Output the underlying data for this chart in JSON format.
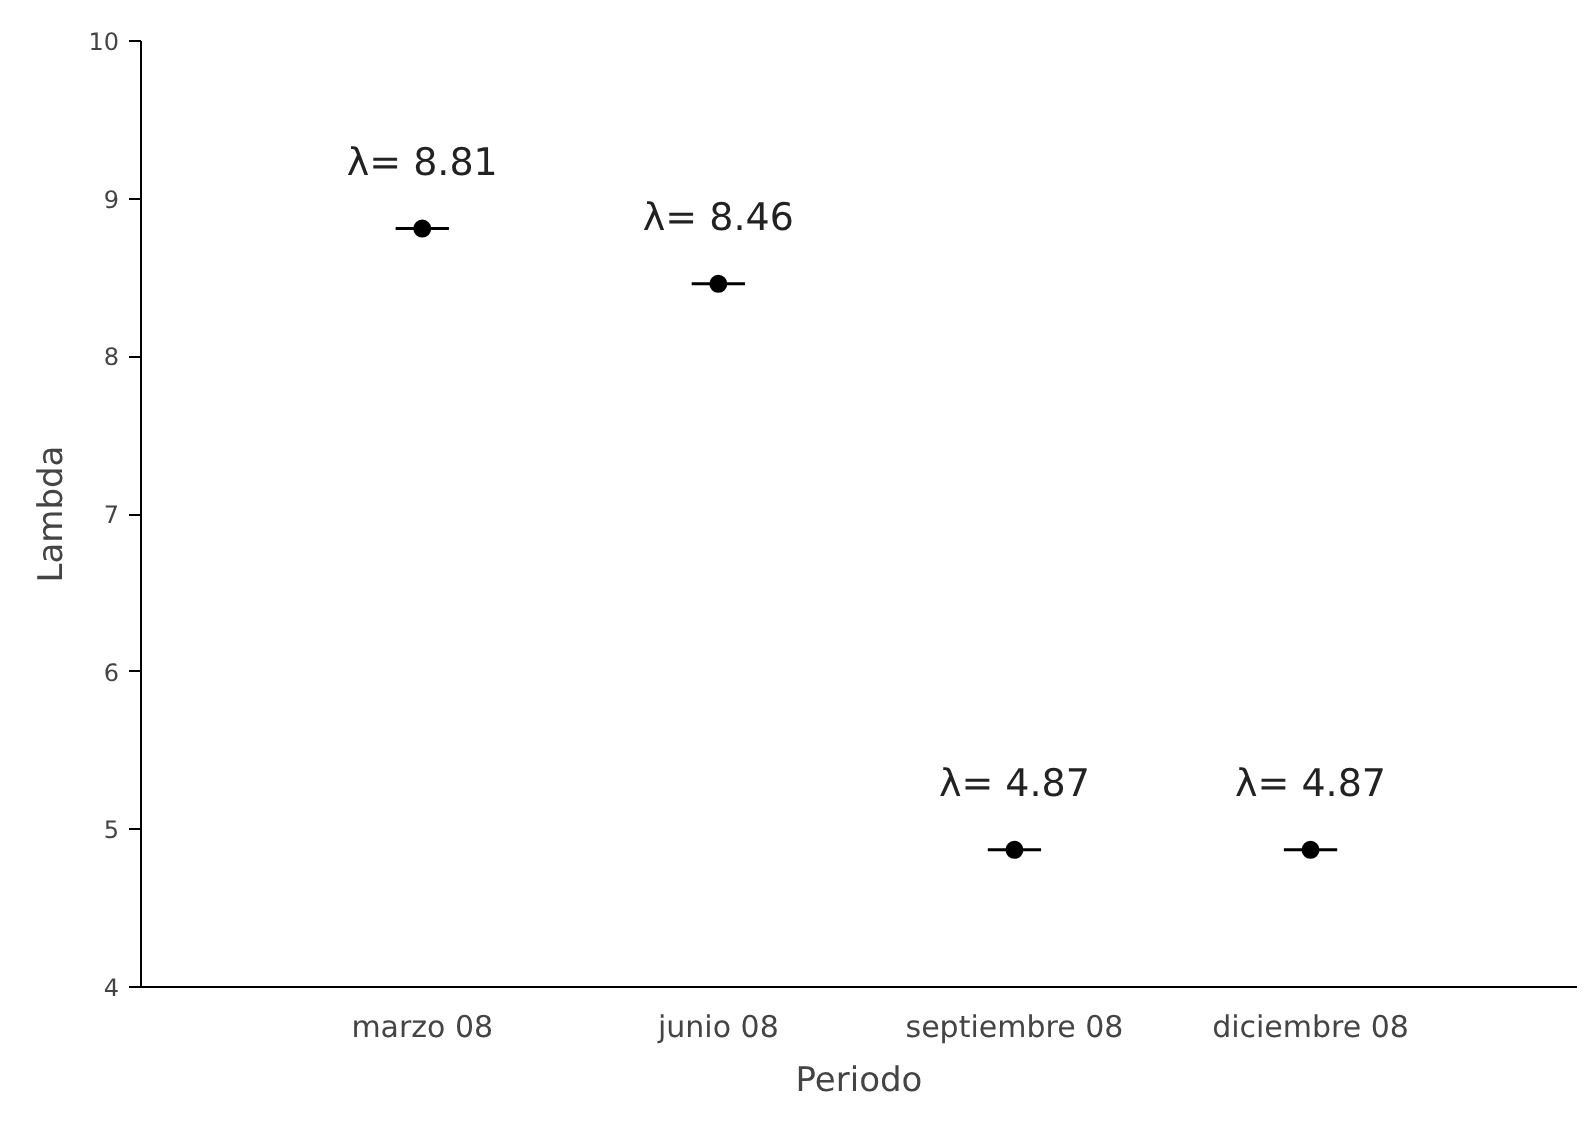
{
  "chart_data": {
    "type": "scatter",
    "xlabel": "Periodo",
    "ylabel": "Lambda",
    "categories": [
      "marzo 08",
      "junio 08",
      "septiembre 08",
      "diciembre 08"
    ],
    "values": [
      8.81,
      8.46,
      4.87,
      4.87
    ],
    "value_labels": [
      "λ= 8.81",
      "λ= 8.46",
      "λ= 4.87",
      "λ= 4.87"
    ],
    "color": "#000000",
    "marker": "circle",
    "ylim": [
      4,
      10
    ],
    "yticks": [
      4,
      5,
      6,
      7,
      8,
      9,
      10
    ],
    "grid": false
  }
}
